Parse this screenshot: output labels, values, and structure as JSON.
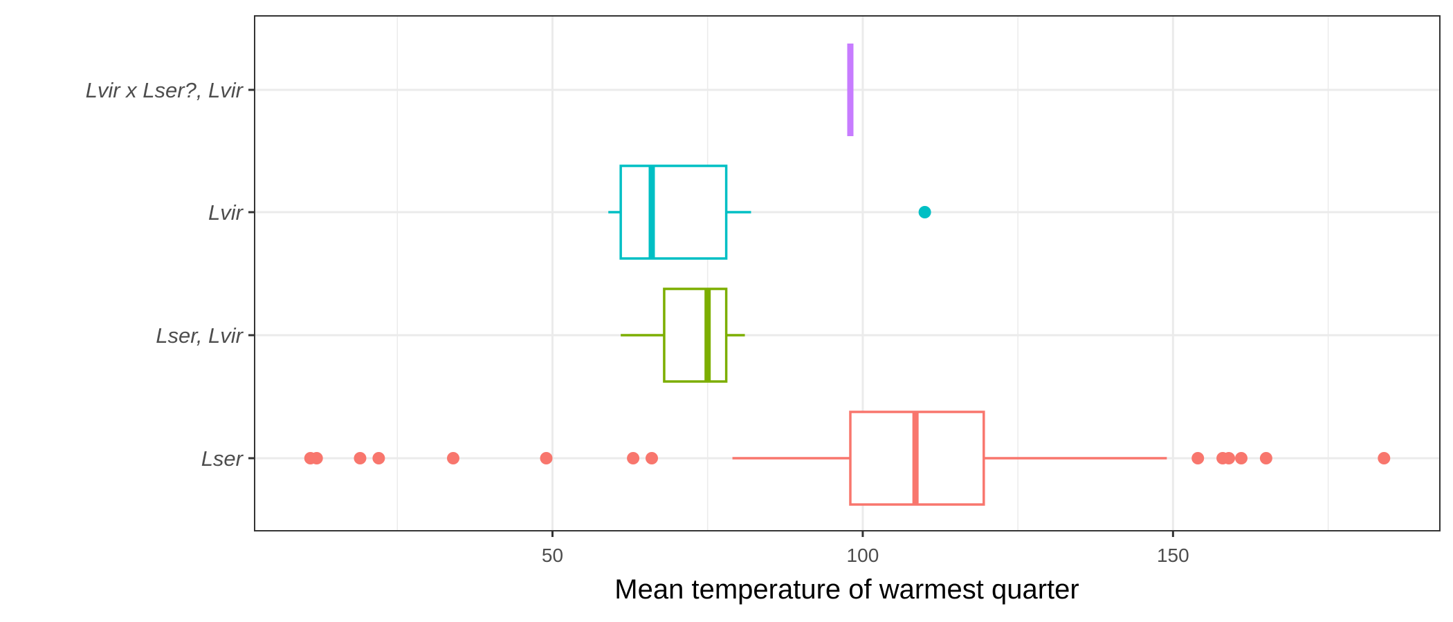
{
  "chart_data": {
    "type": "boxplot",
    "orientation": "horizontal",
    "xlabel": "Mean temperature of warmest quarter",
    "ylabel": "",
    "xlim": [
      2,
      193
    ],
    "x_ticks": [
      50,
      100,
      150
    ],
    "x_minor_ticks": [
      25,
      75,
      125,
      175
    ],
    "categories": [
      "Lser",
      "Lser, Lvir",
      "Lvir",
      "Lvir x Lser?, Lvir"
    ],
    "grid": true,
    "legend": "none",
    "series": [
      {
        "category": "Lser",
        "color": "#F8766D",
        "whisker_low": 79,
        "q1": 98,
        "median": 108.5,
        "q3": 119.5,
        "whisker_high": 149,
        "outliers": [
          11,
          12,
          19,
          22,
          34,
          49,
          63,
          66,
          154,
          158,
          159,
          161,
          165,
          184
        ]
      },
      {
        "category": "Lser, Lvir",
        "color": "#7CAE00",
        "whisker_low": 61,
        "q1": 68,
        "median": 75,
        "q3": 78,
        "whisker_high": 81,
        "outliers": []
      },
      {
        "category": "Lvir",
        "color": "#00BFC4",
        "whisker_low": 59,
        "q1": 61,
        "median": 66,
        "q3": 78,
        "whisker_high": 82,
        "outliers": [
          110
        ]
      },
      {
        "category": "Lvir x Lser?, Lvir",
        "color": "#C77CFF",
        "whisker_low": 98,
        "q1": 98,
        "median": 98,
        "q3": 98,
        "whisker_high": 98,
        "outliers": []
      }
    ]
  }
}
